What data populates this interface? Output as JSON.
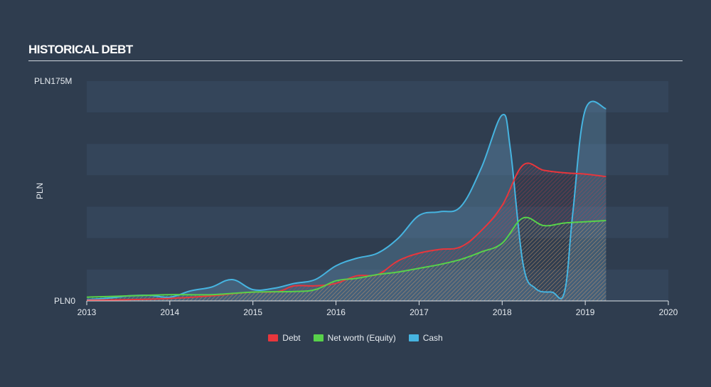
{
  "title": "HISTORICAL DEBT",
  "chart_data": {
    "type": "area",
    "title": "HISTORICAL DEBT",
    "xlabel": "",
    "ylabel": "PLN",
    "ylim": [
      0,
      175
    ],
    "y_unit": "PLN M",
    "y_tick_labels": [
      "PLN0",
      "PLN175M"
    ],
    "xlim": [
      2013,
      2020
    ],
    "x_ticks": [
      "2013",
      "2014",
      "2015",
      "2016",
      "2017",
      "2018",
      "2019",
      "2020"
    ],
    "grid": true,
    "legend_position": "bottom",
    "series": [
      {
        "name": "Debt",
        "color": "#e8363c",
        "points": [
          [
            2013.0,
            0.5
          ],
          [
            2013.5,
            1
          ],
          [
            2014.0,
            2
          ],
          [
            2014.5,
            4
          ],
          [
            2014.8,
            6
          ],
          [
            2015.0,
            7
          ],
          [
            2015.3,
            7.5
          ],
          [
            2015.5,
            12
          ],
          [
            2015.75,
            12
          ],
          [
            2016.0,
            14
          ],
          [
            2016.25,
            20
          ],
          [
            2016.5,
            21
          ],
          [
            2016.75,
            32
          ],
          [
            2017.0,
            38
          ],
          [
            2017.25,
            41
          ],
          [
            2017.5,
            43
          ],
          [
            2017.75,
            56
          ],
          [
            2018.0,
            76
          ],
          [
            2018.25,
            108
          ],
          [
            2018.5,
            104
          ],
          [
            2018.75,
            102
          ],
          [
            2019.0,
            101
          ],
          [
            2019.25,
            99
          ]
        ]
      },
      {
        "name": "Net worth (Equity)",
        "color": "#58d14a",
        "points": [
          [
            2013.0,
            3
          ],
          [
            2013.5,
            4
          ],
          [
            2014.0,
            5
          ],
          [
            2014.5,
            5
          ],
          [
            2015.0,
            7
          ],
          [
            2015.5,
            7.5
          ],
          [
            2015.75,
            9
          ],
          [
            2016.0,
            16
          ],
          [
            2016.25,
            18
          ],
          [
            2016.5,
            21
          ],
          [
            2016.75,
            23
          ],
          [
            2017.0,
            26
          ],
          [
            2017.25,
            29
          ],
          [
            2017.5,
            33
          ],
          [
            2017.75,
            39
          ],
          [
            2018.0,
            46
          ],
          [
            2018.25,
            66
          ],
          [
            2018.5,
            60
          ],
          [
            2018.75,
            62
          ],
          [
            2019.0,
            63
          ],
          [
            2019.25,
            64
          ]
        ]
      },
      {
        "name": "Cash",
        "color": "#46b4e0",
        "points": [
          [
            2013.0,
            1
          ],
          [
            2013.3,
            2.5
          ],
          [
            2013.5,
            4
          ],
          [
            2013.75,
            4.5
          ],
          [
            2014.0,
            3
          ],
          [
            2014.25,
            8
          ],
          [
            2014.5,
            11
          ],
          [
            2014.75,
            17
          ],
          [
            2015.0,
            9
          ],
          [
            2015.25,
            10
          ],
          [
            2015.5,
            14
          ],
          [
            2015.75,
            17
          ],
          [
            2016.0,
            28
          ],
          [
            2016.25,
            34
          ],
          [
            2016.5,
            38
          ],
          [
            2016.75,
            50
          ],
          [
            2017.0,
            68
          ],
          [
            2017.25,
            71
          ],
          [
            2017.5,
            75
          ],
          [
            2017.75,
            106
          ],
          [
            2018.0,
            148
          ],
          [
            2018.1,
            120
          ],
          [
            2018.25,
            30
          ],
          [
            2018.4,
            10
          ],
          [
            2018.6,
            7
          ],
          [
            2018.75,
            7
          ],
          [
            2018.85,
            70
          ],
          [
            2019.0,
            152
          ],
          [
            2019.25,
            153
          ]
        ]
      }
    ]
  }
}
